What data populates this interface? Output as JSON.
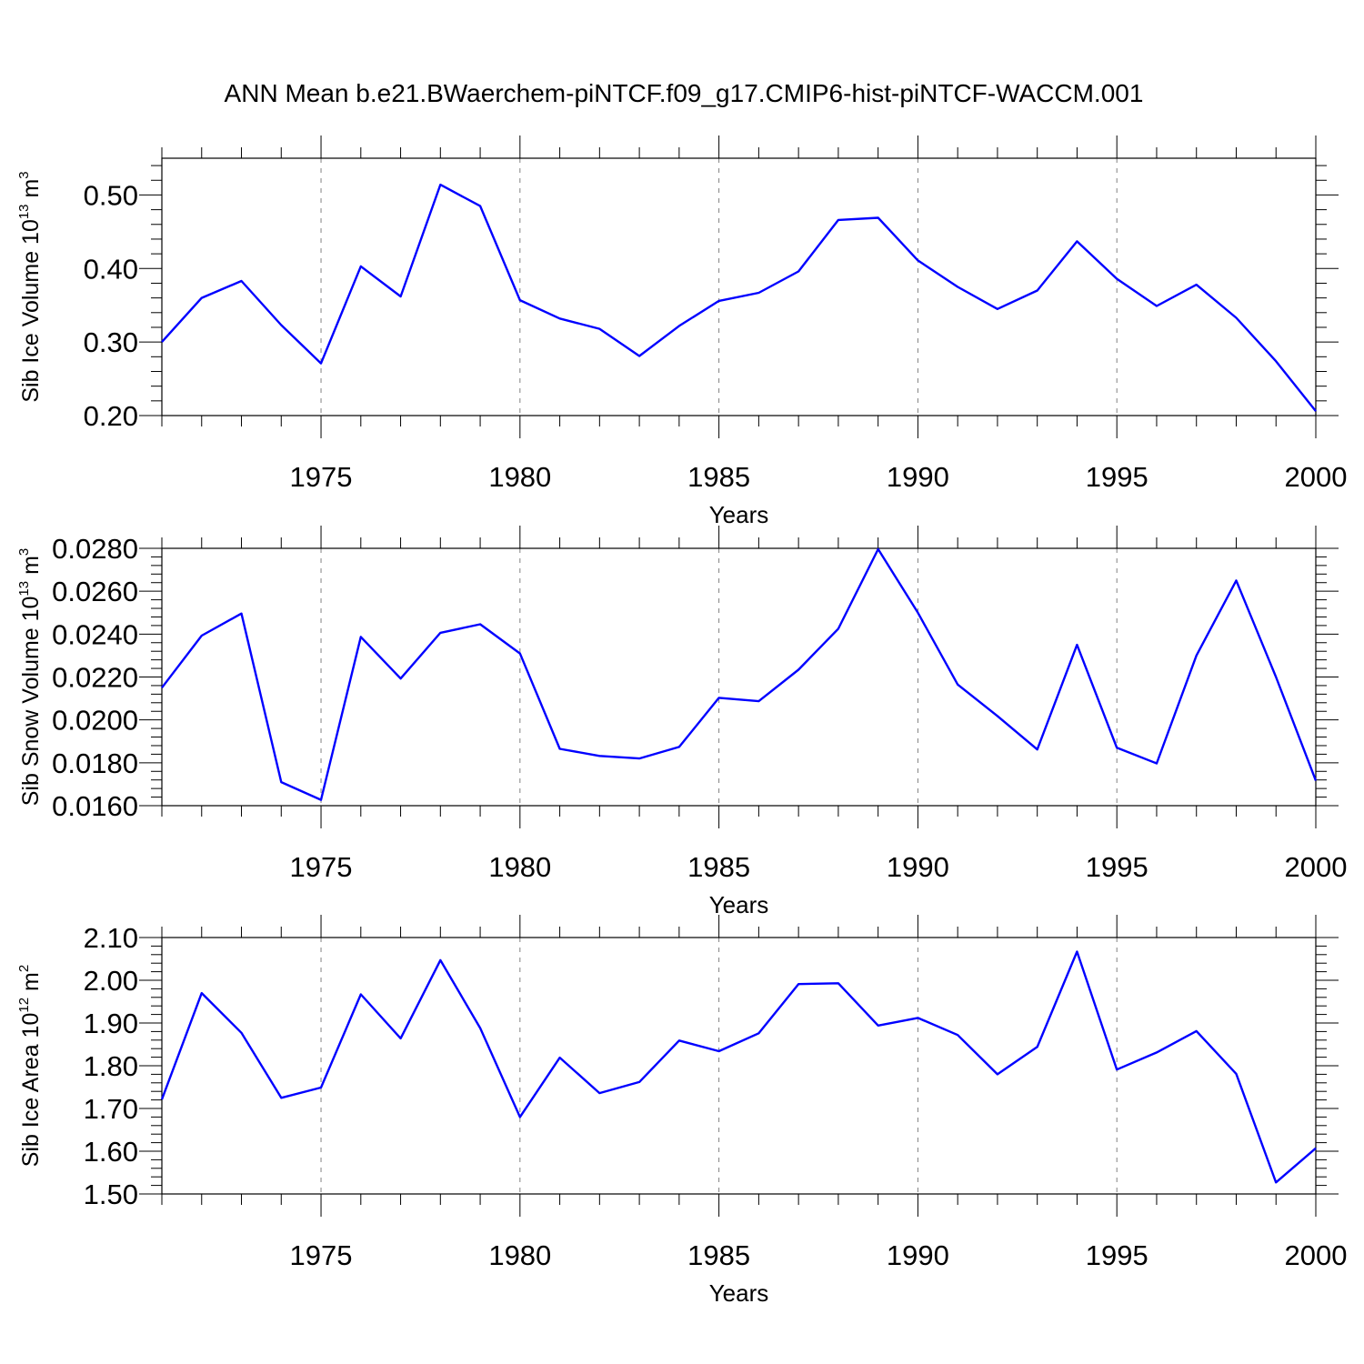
{
  "figure_title": "ANN Mean b.e21.BWaerchem-piNTCF.f09_g17.CMIP6-hist-piNTCF-WACCM.001",
  "colors": {
    "line": "#0000ff",
    "axis": "#000000",
    "grid": "#808080"
  },
  "chart_data": [
    {
      "type": "line",
      "title": "ANN Mean b.e21.BWaerchem-piNTCF.f09_g17.CMIP6-hist-piNTCF-WACCM.001",
      "xlabel": "Years",
      "ylabel": "Sib Ice Volume 10",
      "ylabel_exp": "13",
      "ylabel_unit": " m",
      "ylabel_unit_exp": "3",
      "xlim": [
        1971,
        2000
      ],
      "ylim": [
        0.2,
        0.55
      ],
      "xticks": [
        1975,
        1980,
        1985,
        1990,
        1995,
        2000
      ],
      "yticks": [
        0.2,
        0.3,
        0.4,
        0.5
      ],
      "ytick_labels": [
        "0.20",
        "0.30",
        "0.40",
        "0.50"
      ],
      "x": [
        1971,
        1972,
        1973,
        1974,
        1975,
        1976,
        1977,
        1978,
        1979,
        1980,
        1981,
        1982,
        1983,
        1984,
        1985,
        1986,
        1987,
        1988,
        1989,
        1990,
        1991,
        1992,
        1993,
        1994,
        1995,
        1996,
        1997,
        1998,
        1999,
        2000
      ],
      "series": [
        {
          "name": "Sib Ice Volume",
          "values": [
            0.3,
            0.36,
            0.383,
            0.323,
            0.271,
            0.403,
            0.362,
            0.514,
            0.485,
            0.357,
            0.332,
            0.318,
            0.281,
            0.322,
            0.356,
            0.367,
            0.396,
            0.466,
            0.469,
            0.411,
            0.375,
            0.345,
            0.37,
            0.437,
            0.386,
            0.349,
            0.378,
            0.333,
            0.274,
            0.206
          ]
        }
      ]
    },
    {
      "type": "line",
      "xlabel": "Years",
      "ylabel": "Sib Snow Volume 10",
      "ylabel_exp": "13",
      "ylabel_unit": " m",
      "ylabel_unit_exp": "3",
      "xlim": [
        1971,
        2000
      ],
      "ylim": [
        0.016,
        0.028
      ],
      "xticks": [
        1975,
        1980,
        1985,
        1990,
        1995,
        2000
      ],
      "yticks": [
        0.016,
        0.018,
        0.02,
        0.022,
        0.024,
        0.026,
        0.028
      ],
      "ytick_labels": [
        "0.0160",
        "0.0180",
        "0.0200",
        "0.0220",
        "0.0240",
        "0.0260",
        "0.0280"
      ],
      "x": [
        1971,
        1972,
        1973,
        1974,
        1975,
        1976,
        1977,
        1978,
        1979,
        1980,
        1981,
        1982,
        1983,
        1984,
        1985,
        1986,
        1987,
        1988,
        1989,
        1990,
        1991,
        1992,
        1993,
        1994,
        1995,
        1996,
        1997,
        1998,
        1999,
        2000
      ],
      "series": [
        {
          "name": "Sib Snow Volume",
          "values": [
            0.0215,
            0.02393,
            0.02496,
            0.0171,
            0.01627,
            0.02387,
            0.02193,
            0.02406,
            0.02446,
            0.0231,
            0.01865,
            0.01832,
            0.0182,
            0.01874,
            0.02103,
            0.02087,
            0.02234,
            0.02425,
            0.02796,
            0.025,
            0.02165,
            0.02018,
            0.01862,
            0.0235,
            0.0187,
            0.01797,
            0.023,
            0.0265,
            0.022,
            0.01717
          ]
        }
      ]
    },
    {
      "type": "line",
      "xlabel": "Years",
      "ylabel": "Sib Ice Area 10",
      "ylabel_exp": "12",
      "ylabel_unit": " m",
      "ylabel_unit_exp": "2",
      "xlim": [
        1971,
        2000
      ],
      "ylim": [
        1.5,
        2.1
      ],
      "xticks": [
        1975,
        1980,
        1985,
        1990,
        1995,
        2000
      ],
      "yticks": [
        1.5,
        1.6,
        1.7,
        1.8,
        1.9,
        2.0,
        2.1
      ],
      "ytick_labels": [
        "1.50",
        "1.60",
        "1.70",
        "1.80",
        "1.90",
        "2.00",
        "2.10"
      ],
      "x": [
        1971,
        1972,
        1973,
        1974,
        1975,
        1976,
        1977,
        1978,
        1979,
        1980,
        1981,
        1982,
        1983,
        1984,
        1985,
        1986,
        1987,
        1988,
        1989,
        1990,
        1991,
        1992,
        1993,
        1994,
        1995,
        1996,
        1997,
        1998,
        1999,
        2000
      ],
      "series": [
        {
          "name": "Sib Ice Area",
          "values": [
            1.721,
            1.97,
            1.877,
            1.725,
            1.749,
            1.967,
            1.864,
            2.047,
            1.888,
            1.68,
            1.819,
            1.736,
            1.762,
            1.859,
            1.834,
            1.876,
            1.991,
            1.993,
            1.894,
            1.912,
            1.872,
            1.78,
            1.844,
            2.067,
            1.791,
            1.831,
            1.881,
            1.781,
            1.527,
            1.607
          ]
        }
      ]
    }
  ]
}
